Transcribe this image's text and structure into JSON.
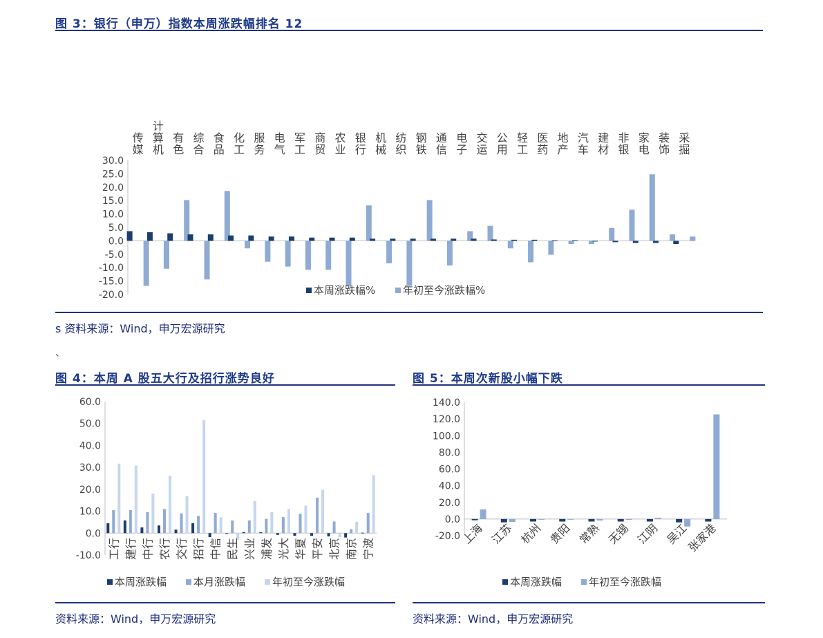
{
  "fig3": {
    "title": "图 3：银行（申万）指数本周涨跌幅排名 12",
    "source": "s 资料来源：Wind，申万宏源研究"
  },
  "stray_mark": "、",
  "fig4": {
    "title": "图 4：本周 A 股五大行及招行涨势良好",
    "source": "资料来源：Wind，申万宏源研究"
  },
  "fig5": {
    "title": "图 5：本周次新股小幅下跌",
    "source": "资料来源：Wind，申万宏源研究"
  },
  "colors": {
    "dark": "#1c3d6e",
    "mid": "#8fabd3",
    "light": "#c5d6ee",
    "rule": "#23317d"
  },
  "chart_data": [
    {
      "type": "bar",
      "categories": [
        "传媒",
        "计算机",
        "有色",
        "综合",
        "食品",
        "化工",
        "服务",
        "电气",
        "军工",
        "商贸",
        "农业",
        "银行",
        "机械",
        "纺织",
        "钢铁",
        "通信",
        "电子",
        "交运",
        "公用",
        "轻工",
        "医药",
        "地产",
        "汽车",
        "建材",
        "非银",
        "家电",
        "装饰",
        "采掘"
      ],
      "series": [
        {
          "name": "本周涨跌幅%",
          "values": [
            3.6,
            3.2,
            2.8,
            2.4,
            2.4,
            2.0,
            2.0,
            1.6,
            1.6,
            1.2,
            1.2,
            1.2,
            0.8,
            0.8,
            0.8,
            0.8,
            0.8,
            0.8,
            0.5,
            0.4,
            0.4,
            0.2,
            0.2,
            -0.2,
            -0.5,
            -0.8,
            -0.8,
            -1.2
          ]
        },
        {
          "name": "年初至今涨跌幅%",
          "values": [
            -16.8,
            -10.4,
            15.2,
            -14.4,
            18.6,
            -2.8,
            -7.8,
            -9.6,
            -10.8,
            -10.8,
            -16.8,
            13.2,
            -8.4,
            -16.8,
            15.2,
            -9.2,
            3.6,
            5.6,
            -2.8,
            -8.0,
            -5.2,
            -1.2,
            -1.2,
            4.8,
            11.6,
            24.8,
            2.4,
            1.6
          ]
        }
      ],
      "ylim": [
        -20,
        30
      ],
      "yticks": [
        "30.0",
        "25.0",
        "20.0",
        "15.0",
        "10.0",
        "5.0",
        "0.0",
        "-5.0",
        "-10.0",
        "-15.0",
        "-20.0"
      ],
      "legend": "bottom-right"
    },
    {
      "type": "bar",
      "categories": [
        "工行",
        "建行",
        "中行",
        "农行",
        "交行",
        "招行",
        "中信",
        "民生",
        "兴业",
        "浦发",
        "光大",
        "华夏",
        "平安",
        "北京",
        "南京",
        "宁波"
      ],
      "series": [
        {
          "name": "本周涨跌幅",
          "values": [
            4.5,
            5.8,
            2.6,
            3.5,
            1.6,
            4.5,
            -1.8,
            -0.3,
            0.5,
            0.4,
            -0.8,
            -1.2,
            -1.2,
            -1.5,
            -2.0,
            0.2
          ]
        },
        {
          "name": "本月涨跌幅",
          "values": [
            10.5,
            10.5,
            9.6,
            11.0,
            9.0,
            7.8,
            9.2,
            5.8,
            5.8,
            6.5,
            7.3,
            8.8,
            16.2,
            5.3,
            1.8,
            9.2
          ]
        },
        {
          "name": "年初至今涨跌幅",
          "values": [
            31.7,
            30.8,
            18.0,
            26.2,
            16.8,
            51.6,
            7.2,
            -3.0,
            14.6,
            9.6,
            11.0,
            12.5,
            19.8,
            -1.8,
            5.2,
            26.5
          ]
        }
      ],
      "ylim": [
        -10,
        60
      ],
      "yticks": [
        "60.0",
        "50.0",
        "40.0",
        "30.0",
        "20.0",
        "10.0",
        "0.0",
        "-10.0"
      ],
      "legend": "bottom"
    },
    {
      "type": "bar",
      "categories": [
        "上海",
        "江苏",
        "杭州",
        "贵阳",
        "常熟",
        "无锡",
        "江阴",
        "吴江",
        "张家港"
      ],
      "series": [
        {
          "name": "本周涨跌幅",
          "values": [
            -1.5,
            -4.0,
            -3.0,
            -3.0,
            -3.0,
            -3.0,
            -3.0,
            -4.0,
            -3.0
          ]
        },
        {
          "name": "年初至今涨跌幅",
          "values": [
            11.5,
            -3.5,
            -0.8,
            -0.8,
            -1.8,
            -1.0,
            1.5,
            -9.0,
            125.5
          ]
        }
      ],
      "ylim": [
        -20,
        140
      ],
      "yticks": [
        "140.0",
        "120.0",
        "100.0",
        "80.0",
        "60.0",
        "40.0",
        "20.0",
        "0.0",
        "-20.0"
      ],
      "legend": "bottom"
    }
  ]
}
